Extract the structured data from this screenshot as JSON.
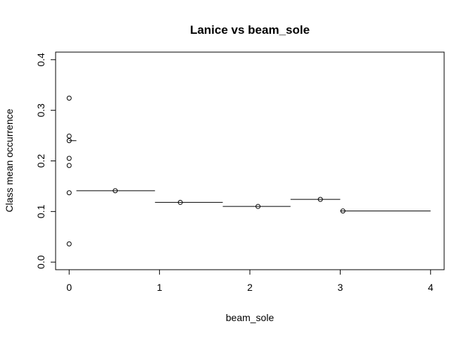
{
  "chart_data": {
    "type": "scatter",
    "title": "Lanice vs beam_sole",
    "xlabel": "beam_sole",
    "ylabel": "Class mean occurrence",
    "xlim": [
      -0.15,
      4.15
    ],
    "ylim": [
      -0.015,
      0.415
    ],
    "xticks": [
      {
        "value": 0,
        "label": "0"
      },
      {
        "value": 1,
        "label": "1"
      },
      {
        "value": 2,
        "label": "2"
      },
      {
        "value": 3,
        "label": "3"
      },
      {
        "value": 4,
        "label": "4"
      }
    ],
    "yticks": [
      {
        "value": 0.0,
        "label": "0.0"
      },
      {
        "value": 0.1,
        "label": "0.1"
      },
      {
        "value": 0.2,
        "label": "0.2"
      },
      {
        "value": 0.3,
        "label": "0.3"
      },
      {
        "value": 0.4,
        "label": "0.4"
      }
    ],
    "points": [
      {
        "x": 0,
        "y": 0.324
      },
      {
        "x": 0,
        "y": 0.249
      },
      {
        "x": 0,
        "y": 0.24
      },
      {
        "x": 0,
        "y": 0.205
      },
      {
        "x": 0,
        "y": 0.191
      },
      {
        "x": 0,
        "y": 0.137
      },
      {
        "x": 0,
        "y": 0.036
      },
      {
        "x": 0.51,
        "y": 0.141
      },
      {
        "x": 1.23,
        "y": 0.118
      },
      {
        "x": 2.09,
        "y": 0.11
      },
      {
        "x": 2.78,
        "y": 0.124
      },
      {
        "x": 3.03,
        "y": 0.101
      }
    ],
    "class_means": [
      {
        "x_start": 0.0,
        "x_end": 0.08,
        "y": 0.24
      },
      {
        "x_start": 0.08,
        "x_end": 0.95,
        "y": 0.141
      },
      {
        "x_start": 0.95,
        "x_end": 1.7,
        "y": 0.118
      },
      {
        "x_start": 1.7,
        "x_end": 2.45,
        "y": 0.11
      },
      {
        "x_start": 2.45,
        "x_end": 3.0,
        "y": 0.124
      },
      {
        "x_start": 3.0,
        "x_end": 4.0,
        "y": 0.101
      }
    ],
    "grid": false,
    "legend": "none"
  }
}
